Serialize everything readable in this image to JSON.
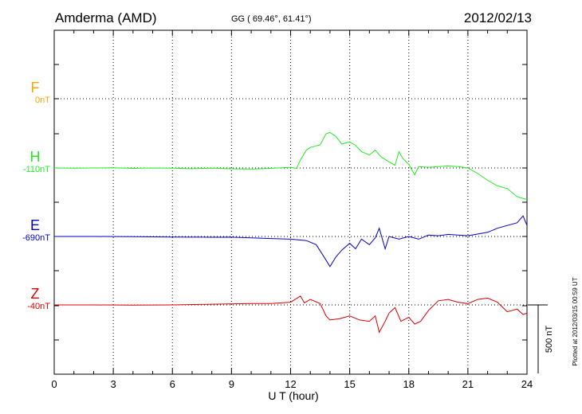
{
  "chart_data": {
    "type": "line",
    "station": "Amderma (AMD)",
    "coords": "GG ( 69.46°,  61.41°)",
    "date": "2012/02/13",
    "xlabel": "U T (hour)",
    "xlim": [
      0,
      24
    ],
    "x_ticks": [
      "0",
      "3",
      "6",
      "9",
      "12",
      "15",
      "18",
      "21",
      "24"
    ],
    "scale_label": "500 nT",
    "plotted_note": "Plotted at 2012/03/15 00:59 UT",
    "series": [
      {
        "name": "F",
        "baseline": "0nT",
        "color": "#ffa500",
        "points": []
      },
      {
        "name": "H",
        "baseline": "-110nT",
        "color": "#22ee22",
        "points": [
          [
            0,
            0
          ],
          [
            1,
            -2
          ],
          [
            2,
            0
          ],
          [
            3,
            2
          ],
          [
            4,
            -3
          ],
          [
            5,
            0
          ],
          [
            6,
            -2
          ],
          [
            7,
            -5
          ],
          [
            8,
            -1
          ],
          [
            9,
            -6
          ],
          [
            10,
            -8
          ],
          [
            11,
            -3
          ],
          [
            12,
            5
          ],
          [
            12.3,
            -3
          ],
          [
            12.5,
            60
          ],
          [
            12.8,
            130
          ],
          [
            13,
            150
          ],
          [
            13.5,
            170
          ],
          [
            13.8,
            250
          ],
          [
            14,
            260
          ],
          [
            14.3,
            230
          ],
          [
            14.6,
            175
          ],
          [
            15,
            190
          ],
          [
            15.3,
            165
          ],
          [
            15.6,
            120
          ],
          [
            16,
            95
          ],
          [
            16.3,
            130
          ],
          [
            16.6,
            80
          ],
          [
            17,
            45
          ],
          [
            17.3,
            20
          ],
          [
            17.5,
            120
          ],
          [
            17.7,
            70
          ],
          [
            18,
            25
          ],
          [
            18.3,
            -50
          ],
          [
            18.5,
            10
          ],
          [
            19,
            5
          ],
          [
            19.5,
            10
          ],
          [
            20,
            15
          ],
          [
            20.5,
            10
          ],
          [
            21,
            0
          ],
          [
            21.5,
            -40
          ],
          [
            22,
            -90
          ],
          [
            22.5,
            -130
          ],
          [
            23,
            -150
          ],
          [
            23.5,
            -210
          ],
          [
            24,
            -230
          ]
        ]
      },
      {
        "name": "E",
        "baseline": "-690nT",
        "color": "#0000cc",
        "points": [
          [
            0,
            0
          ],
          [
            2,
            0
          ],
          [
            4,
            -2
          ],
          [
            6,
            -4
          ],
          [
            8,
            -6
          ],
          [
            9,
            -5
          ],
          [
            10,
            -10
          ],
          [
            11,
            -15
          ],
          [
            12,
            -20
          ],
          [
            12.8,
            -30
          ],
          [
            13.3,
            -60
          ],
          [
            13.7,
            -150
          ],
          [
            14,
            -220
          ],
          [
            14.3,
            -150
          ],
          [
            14.6,
            -100
          ],
          [
            15,
            -50
          ],
          [
            15.3,
            -90
          ],
          [
            15.6,
            -20
          ],
          [
            16,
            -60
          ],
          [
            16.3,
            -10
          ],
          [
            16.5,
            60
          ],
          [
            16.8,
            -90
          ],
          [
            17,
            0
          ],
          [
            17.5,
            -20
          ],
          [
            18,
            0
          ],
          [
            18.5,
            -20
          ],
          [
            19,
            10
          ],
          [
            19.5,
            5
          ],
          [
            20,
            15
          ],
          [
            21,
            5
          ],
          [
            22,
            30
          ],
          [
            22.5,
            60
          ],
          [
            23,
            80
          ],
          [
            23.5,
            100
          ],
          [
            23.8,
            150
          ],
          [
            24,
            80
          ]
        ]
      },
      {
        "name": "Z",
        "baseline": "-40nT",
        "color": "#dd0000",
        "points": [
          [
            0,
            0
          ],
          [
            2,
            0
          ],
          [
            4,
            -2
          ],
          [
            6,
            0
          ],
          [
            8,
            5
          ],
          [
            10,
            10
          ],
          [
            11,
            10
          ],
          [
            12,
            20
          ],
          [
            12.5,
            65
          ],
          [
            12.7,
            15
          ],
          [
            13,
            40
          ],
          [
            13.5,
            10
          ],
          [
            13.8,
            -80
          ],
          [
            14,
            -110
          ],
          [
            14.5,
            -100
          ],
          [
            15,
            -80
          ],
          [
            15.5,
            -110
          ],
          [
            16,
            -120
          ],
          [
            16.3,
            -80
          ],
          [
            16.5,
            -200
          ],
          [
            16.8,
            -120
          ],
          [
            17,
            -60
          ],
          [
            17.3,
            -20
          ],
          [
            17.6,
            -120
          ],
          [
            18,
            -90
          ],
          [
            18.3,
            -140
          ],
          [
            18.6,
            -120
          ],
          [
            19,
            -40
          ],
          [
            19.5,
            30
          ],
          [
            20,
            40
          ],
          [
            20.5,
            20
          ],
          [
            21,
            10
          ],
          [
            21.5,
            40
          ],
          [
            22,
            50
          ],
          [
            22.5,
            20
          ],
          [
            23,
            -50
          ],
          [
            23.5,
            -30
          ],
          [
            23.8,
            -70
          ],
          [
            24,
            -60
          ]
        ]
      }
    ]
  }
}
